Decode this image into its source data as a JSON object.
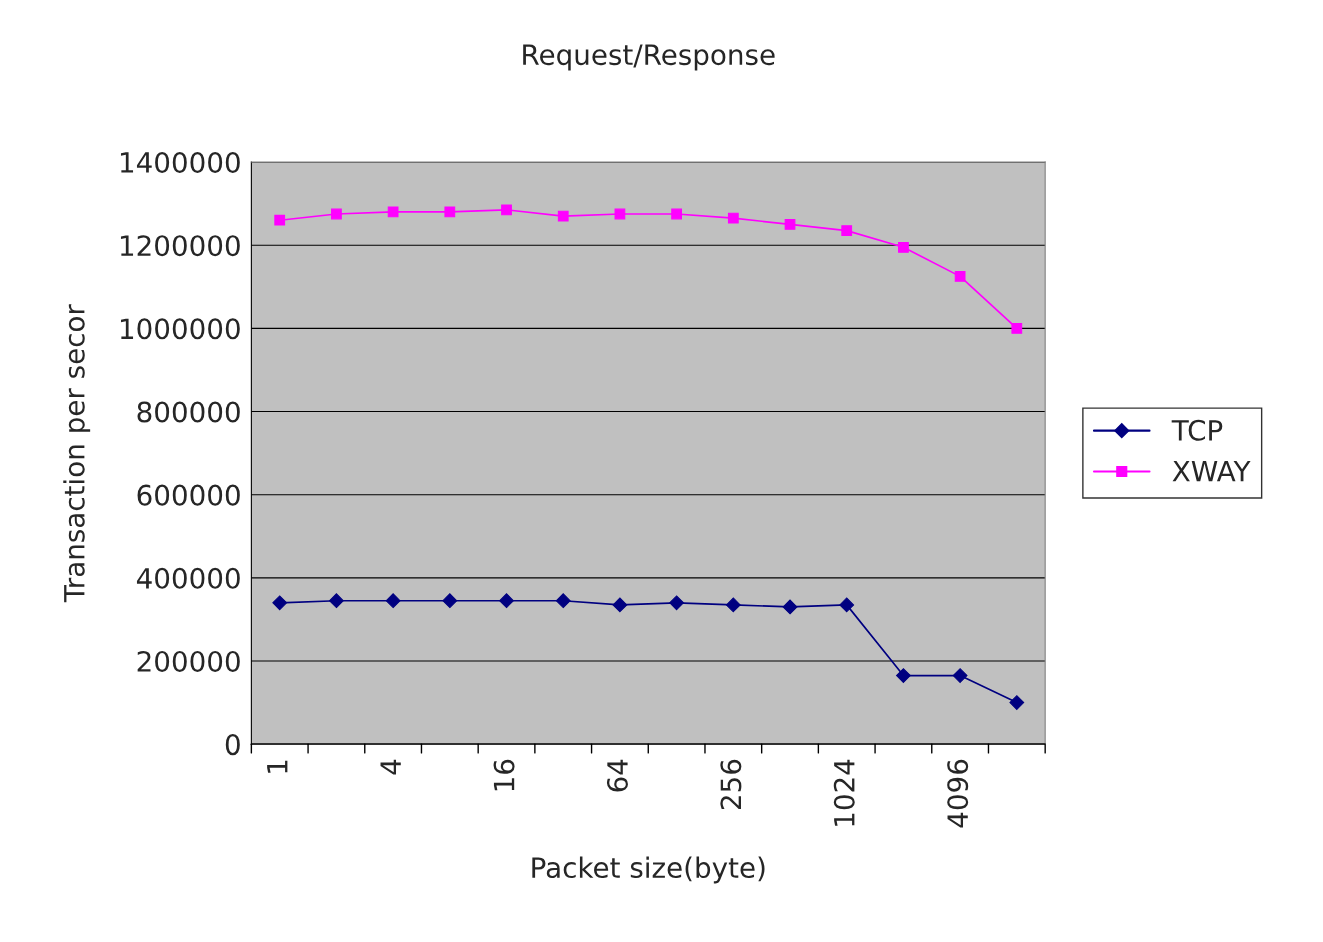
{
  "chart_data": {
    "type": "line",
    "title": "Request/Response",
    "xlabel": "Packet size(byte)",
    "ylabel": "Transaction per secor",
    "categories": [
      "1",
      null,
      "4",
      null,
      "16",
      null,
      "64",
      null,
      "256",
      null,
      "1024",
      null,
      "4096",
      null
    ],
    "series": [
      {
        "name": "TCP",
        "color": "#000080",
        "marker": "diamond",
        "values": [
          340000,
          345000,
          345000,
          345000,
          345000,
          345000,
          335000,
          340000,
          335000,
          330000,
          335000,
          165000,
          165000,
          100000
        ]
      },
      {
        "name": "XWAY",
        "color": "#ff00ff",
        "marker": "square",
        "values": [
          1260000,
          1275000,
          1280000,
          1280000,
          1285000,
          1270000,
          1275000,
          1275000,
          1265000,
          1250000,
          1235000,
          1195000,
          1125000,
          1000000
        ]
      }
    ],
    "ylim": [
      0,
      1400000
    ],
    "yticks": [
      0,
      200000,
      400000,
      600000,
      800000,
      1000000,
      1200000,
      1400000
    ],
    "grid": "y",
    "legend": "right",
    "line_style": "solid"
  }
}
